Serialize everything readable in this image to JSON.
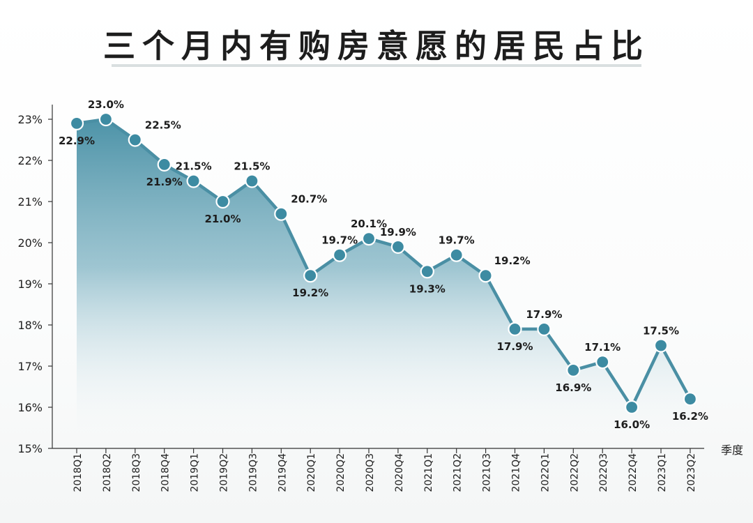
{
  "chart_data": {
    "type": "line",
    "title": "三个月内有购房意愿的居民占比",
    "xlabel": "季度",
    "ylabel": "",
    "x": [
      "2018Q1",
      "2018Q2",
      "2018Q3",
      "2018Q4",
      "2019Q1",
      "2019Q2",
      "2019Q3",
      "2019Q4",
      "2020Q1",
      "2020Q2",
      "2020Q3",
      "2020Q4",
      "2021Q1",
      "2021Q2",
      "2021Q3",
      "2021Q4",
      "2022Q1",
      "2022Q2",
      "2022Q3",
      "2022Q4",
      "2023Q1",
      "2023Q2"
    ],
    "values": [
      22.9,
      23.0,
      22.5,
      21.9,
      21.5,
      21.0,
      21.5,
      20.7,
      19.2,
      19.7,
      20.1,
      19.9,
      19.3,
      19.7,
      19.2,
      17.9,
      17.9,
      16.9,
      17.1,
      16.0,
      17.5,
      16.2
    ],
    "data_labels": [
      "22.9%",
      "23.0%",
      "22.5%",
      "21.9%",
      "21.5%",
      "21.0%",
      "21.5%",
      "20.7%",
      "19.2%",
      "19.7%",
      "20.1%",
      "19.9%",
      "19.3%",
      "19.7%",
      "19.2%",
      "17.9%",
      "17.9%",
      "16.9%",
      "17.1%",
      "16.0%",
      "17.5%",
      "16.2%"
    ],
    "yticks": [
      15,
      16,
      17,
      18,
      19,
      20,
      21,
      22,
      23
    ],
    "ytick_labels": [
      "15%",
      "16%",
      "17%",
      "18%",
      "19%",
      "20%",
      "21%",
      "22%",
      "23%"
    ],
    "ylim": [
      15,
      23.5
    ],
    "grid": false,
    "colors": {
      "line": "#4a8fa4",
      "marker": "#3d8ba2",
      "marker_ring": "#ffffff",
      "fill_top": "#4d93a8",
      "axis": "#333333"
    }
  }
}
